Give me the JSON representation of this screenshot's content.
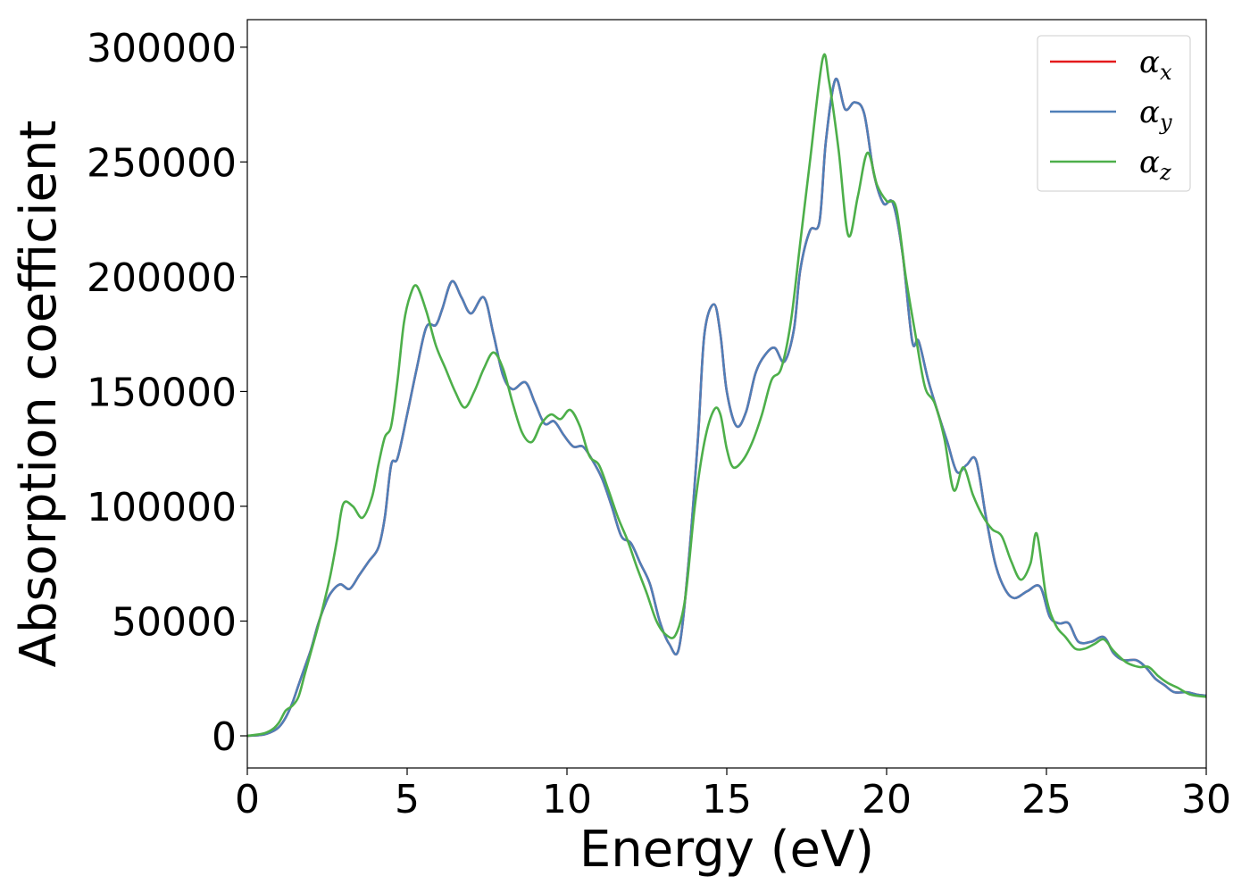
{
  "chart_data": {
    "type": "line",
    "title": "",
    "xlabel": "Energy (eV)",
    "ylabel": "Absorption coefficient",
    "xlim": [
      0,
      30
    ],
    "ylim": [
      -14000,
      312000
    ],
    "x_ticks": [
      0,
      5,
      10,
      15,
      20,
      25,
      30
    ],
    "x_tick_labels": [
      "0",
      "5",
      "10",
      "15",
      "20",
      "25",
      "30"
    ],
    "y_ticks": [
      0,
      50000,
      100000,
      150000,
      200000,
      250000,
      300000
    ],
    "y_tick_labels": [
      "0",
      "50000",
      "100000",
      "150000",
      "200000",
      "250000",
      "300000"
    ],
    "grid": false,
    "legend_position": "top-right",
    "series": [
      {
        "name": "αx",
        "label_base": "α",
        "label_sub": "x",
        "color": "#e41a1c",
        "x": [
          0,
          0.5,
          0.8,
          1.0,
          1.2,
          1.4,
          1.6,
          1.8,
          2.0,
          2.2,
          2.4,
          2.6,
          2.9,
          3.2,
          3.5,
          3.8,
          4.1,
          4.3,
          4.5,
          4.7,
          5.0,
          5.3,
          5.6,
          5.9,
          6.1,
          6.4,
          6.7,
          7.0,
          7.4,
          7.7,
          8.0,
          8.3,
          8.7,
          9.0,
          9.3,
          9.6,
          9.9,
          10.2,
          10.5,
          10.8,
          11.1,
          11.4,
          11.7,
          12.0,
          12.3,
          12.6,
          12.9,
          13.2,
          13.5,
          13.8,
          14.1,
          14.3,
          14.6,
          14.8,
          15.0,
          15.3,
          15.6,
          15.9,
          16.2,
          16.5,
          16.8,
          17.1,
          17.3,
          17.6,
          17.9,
          18.1,
          18.4,
          18.7,
          19.0,
          19.3,
          19.6,
          19.9,
          20.2,
          20.5,
          20.8,
          21.0,
          21.3,
          21.6,
          21.9,
          22.2,
          22.5,
          22.8,
          23.1,
          23.4,
          23.7,
          24.0,
          24.4,
          24.8,
          25.1,
          25.4,
          25.7,
          26.0,
          26.4,
          26.8,
          27.1,
          27.4,
          27.8,
          28.1,
          28.4,
          28.7,
          29.0,
          29.4,
          29.7,
          30.0
        ],
        "y": [
          0,
          500,
          2000,
          4000,
          8000,
          14000,
          22000,
          30000,
          38000,
          48000,
          56000,
          62000,
          66000,
          64000,
          70000,
          76000,
          82000,
          95000,
          118000,
          121000,
          140000,
          160000,
          178000,
          179000,
          186000,
          198000,
          191000,
          184000,
          191000,
          175000,
          157000,
          151000,
          154000,
          145000,
          136000,
          137000,
          131000,
          126000,
          126000,
          120000,
          112000,
          100000,
          87000,
          84000,
          75000,
          66000,
          50000,
          40000,
          38000,
          75000,
          130000,
          175000,
          188000,
          175000,
          150000,
          135000,
          141000,
          158000,
          166000,
          169000,
          163000,
          177000,
          203000,
          220000,
          224000,
          259000,
          286000,
          273000,
          276000,
          271000,
          245000,
          232000,
          232000,
          210000,
          172000,
          172000,
          155000,
          141000,
          128000,
          115000,
          118000,
          120000,
          96000,
          75000,
          64000,
          60000,
          63000,
          65000,
          52000,
          49000,
          49000,
          41000,
          41000,
          43000,
          36000,
          33000,
          33000,
          30000,
          25000,
          22000,
          19000,
          19000,
          18000,
          17500
        ]
      },
      {
        "name": "αy",
        "label_base": "α",
        "label_sub": "y",
        "color": "#4f7fb8",
        "x": [
          0,
          0.5,
          0.8,
          1.0,
          1.2,
          1.4,
          1.6,
          1.8,
          2.0,
          2.2,
          2.4,
          2.6,
          2.9,
          3.2,
          3.5,
          3.8,
          4.1,
          4.3,
          4.5,
          4.7,
          5.0,
          5.3,
          5.6,
          5.9,
          6.1,
          6.4,
          6.7,
          7.0,
          7.4,
          7.7,
          8.0,
          8.3,
          8.7,
          9.0,
          9.3,
          9.6,
          9.9,
          10.2,
          10.5,
          10.8,
          11.1,
          11.4,
          11.7,
          12.0,
          12.3,
          12.6,
          12.9,
          13.2,
          13.5,
          13.8,
          14.1,
          14.3,
          14.6,
          14.8,
          15.0,
          15.3,
          15.6,
          15.9,
          16.2,
          16.5,
          16.8,
          17.1,
          17.3,
          17.6,
          17.9,
          18.1,
          18.4,
          18.7,
          19.0,
          19.3,
          19.6,
          19.9,
          20.2,
          20.5,
          20.8,
          21.0,
          21.3,
          21.6,
          21.9,
          22.2,
          22.5,
          22.8,
          23.1,
          23.4,
          23.7,
          24.0,
          24.4,
          24.8,
          25.1,
          25.4,
          25.7,
          26.0,
          26.4,
          26.8,
          27.1,
          27.4,
          27.8,
          28.1,
          28.4,
          28.7,
          29.0,
          29.4,
          29.7,
          30.0
        ],
        "y": [
          0,
          500,
          2000,
          4000,
          8000,
          14000,
          22000,
          30000,
          38000,
          48000,
          56000,
          62000,
          66000,
          64000,
          70000,
          76000,
          82000,
          95000,
          118000,
          121000,
          140000,
          160000,
          178000,
          179000,
          186000,
          198000,
          191000,
          184000,
          191000,
          175000,
          157000,
          151000,
          154000,
          145000,
          136000,
          137000,
          131000,
          126000,
          126000,
          120000,
          112000,
          100000,
          87000,
          84000,
          75000,
          66000,
          50000,
          40000,
          38000,
          75000,
          130000,
          175000,
          188000,
          175000,
          150000,
          135000,
          141000,
          158000,
          166000,
          169000,
          163000,
          177000,
          203000,
          220000,
          224000,
          259000,
          286000,
          273000,
          276000,
          271000,
          245000,
          232000,
          232000,
          210000,
          172000,
          172000,
          155000,
          141000,
          128000,
          115000,
          118000,
          120000,
          96000,
          75000,
          64000,
          60000,
          63000,
          65000,
          52000,
          49000,
          49000,
          41000,
          41000,
          43000,
          36000,
          33000,
          33000,
          30000,
          25000,
          22000,
          19000,
          19000,
          18000,
          17500
        ]
      },
      {
        "name": "αz",
        "label_base": "α",
        "label_sub": "z",
        "color": "#4daf4a",
        "x": [
          0,
          0.5,
          0.8,
          1.0,
          1.2,
          1.4,
          1.6,
          1.8,
          2.0,
          2.2,
          2.4,
          2.6,
          2.8,
          3.0,
          3.3,
          3.6,
          3.9,
          4.1,
          4.3,
          4.5,
          4.7,
          4.9,
          5.1,
          5.3,
          5.6,
          5.9,
          6.2,
          6.5,
          6.8,
          7.1,
          7.4,
          7.7,
          8.0,
          8.3,
          8.6,
          8.9,
          9.2,
          9.5,
          9.8,
          10.1,
          10.4,
          10.7,
          11.0,
          11.3,
          11.6,
          11.9,
          12.2,
          12.5,
          12.8,
          13.1,
          13.4,
          13.7,
          14.0,
          14.3,
          14.6,
          14.8,
          15.0,
          15.2,
          15.5,
          15.8,
          16.1,
          16.4,
          16.7,
          17.0,
          17.3,
          17.6,
          18.0,
          18.2,
          18.5,
          18.8,
          19.1,
          19.4,
          19.7,
          20.0,
          20.3,
          20.6,
          20.9,
          21.2,
          21.5,
          21.8,
          22.1,
          22.4,
          22.7,
          23.0,
          23.3,
          23.6,
          23.9,
          24.2,
          24.5,
          24.7,
          25.0,
          25.3,
          25.6,
          25.9,
          26.2,
          26.5,
          26.8,
          27.1,
          27.5,
          27.9,
          28.2,
          28.5,
          28.8,
          29.1,
          29.5,
          30.0
        ],
        "y": [
          0,
          1000,
          3000,
          6000,
          11000,
          13000,
          17000,
          27000,
          37000,
          47000,
          58000,
          70000,
          85000,
          101000,
          100000,
          95000,
          104000,
          118000,
          130000,
          135000,
          155000,
          180000,
          192000,
          196000,
          185000,
          170000,
          160000,
          150000,
          143000,
          150000,
          160000,
          167000,
          160000,
          145000,
          132000,
          128000,
          136000,
          140000,
          138000,
          142000,
          135000,
          122000,
          118000,
          107000,
          95000,
          85000,
          73000,
          62000,
          50000,
          44000,
          44000,
          60000,
          100000,
          128000,
          142000,
          140000,
          125000,
          117000,
          120000,
          128000,
          140000,
          155000,
          160000,
          180000,
          215000,
          250000,
          295000,
          285000,
          255000,
          218000,
          235000,
          254000,
          240000,
          233000,
          230000,
          200000,
          175000,
          152000,
          145000,
          130000,
          107000,
          117000,
          105000,
          96000,
          90000,
          87000,
          76000,
          68000,
          75000,
          88000,
          60000,
          48000,
          43000,
          38000,
          38000,
          40000,
          42000,
          37000,
          32000,
          30000,
          30000,
          26000,
          23000,
          21000,
          18000,
          17000
        ]
      }
    ]
  }
}
